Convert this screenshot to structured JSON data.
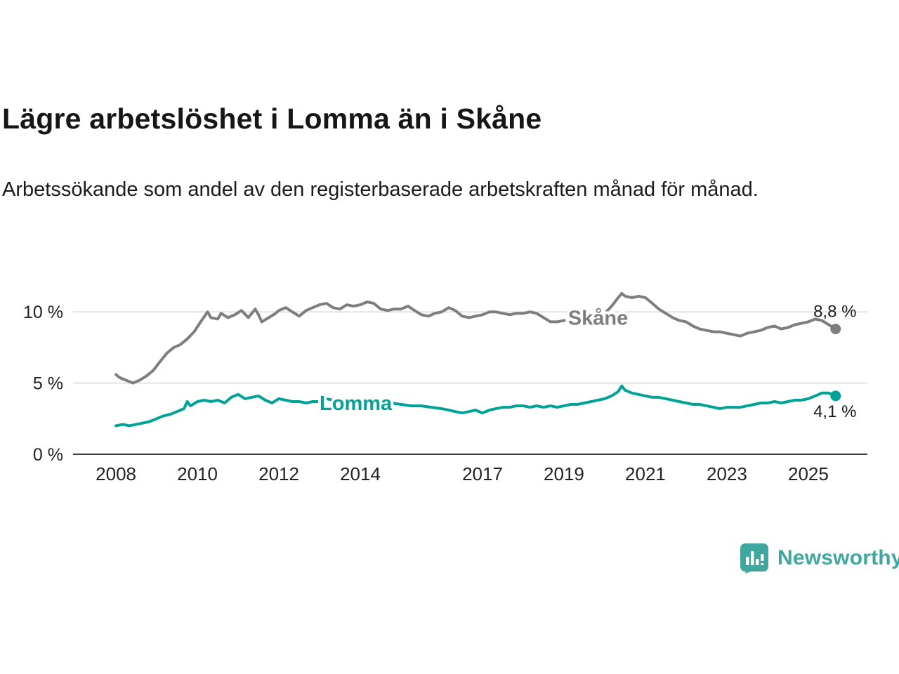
{
  "title": "Lägre arbetslöshet i Lomma än i Skåne",
  "subtitle": "Arbetssökande som andel av den registerbaserade arbetskraften månad för månad.",
  "branding": {
    "name": "Newsworthy",
    "color": "#3fa79f",
    "icon": "bar-chart-speech-bubble-icon"
  },
  "chart_data": {
    "type": "line",
    "title": "Lägre arbetslöshet i Lomma än i Skåne",
    "subtitle": "Arbetssökande som andel av den registerbaserade arbetskraften månad för månad.",
    "xlabel": "",
    "ylabel": "",
    "unit": "%",
    "grid": true,
    "xlim": [
      2007.05,
      2026.45
    ],
    "ylim": [
      0,
      12.33
    ],
    "x_ticks": [
      2008,
      2010,
      2012,
      2014,
      2017,
      2019,
      2021,
      2023,
      2025
    ],
    "y_ticks": [
      {
        "value": 0,
        "label": "0 %"
      },
      {
        "value": 5,
        "label": "5 %"
      },
      {
        "value": 10,
        "label": "10 %"
      }
    ],
    "colors": {
      "grid": "#d9d9d9",
      "axis": "#3d3d3d",
      "tick_text": "#222222",
      "end_label_text": "#1a1a1a"
    },
    "series": [
      {
        "name": "Skåne",
        "color": "#7e7e7e",
        "end_label": "8,8 %",
        "end_value": 8.8,
        "end_label_position": "above",
        "label_x": 2019.1,
        "label_y": 9.1,
        "points": [
          [
            2008.0,
            5.6
          ],
          [
            2008.08,
            5.4
          ],
          [
            2008.25,
            5.2
          ],
          [
            2008.42,
            5.0
          ],
          [
            2008.58,
            5.2
          ],
          [
            2008.75,
            5.5
          ],
          [
            2008.92,
            5.9
          ],
          [
            2009.08,
            6.5
          ],
          [
            2009.25,
            7.1
          ],
          [
            2009.42,
            7.5
          ],
          [
            2009.58,
            7.7
          ],
          [
            2009.75,
            8.1
          ],
          [
            2009.92,
            8.6
          ],
          [
            2010.08,
            9.3
          ],
          [
            2010.25,
            10.0
          ],
          [
            2010.33,
            9.6
          ],
          [
            2010.5,
            9.5
          ],
          [
            2010.58,
            9.9
          ],
          [
            2010.75,
            9.6
          ],
          [
            2010.92,
            9.8
          ],
          [
            2011.08,
            10.1
          ],
          [
            2011.25,
            9.6
          ],
          [
            2011.42,
            10.2
          ],
          [
            2011.5,
            9.8
          ],
          [
            2011.58,
            9.3
          ],
          [
            2011.75,
            9.6
          ],
          [
            2011.92,
            9.9
          ],
          [
            2012.0,
            10.1
          ],
          [
            2012.17,
            10.3
          ],
          [
            2012.33,
            10.0
          ],
          [
            2012.5,
            9.7
          ],
          [
            2012.67,
            10.1
          ],
          [
            2012.83,
            10.3
          ],
          [
            2013.0,
            10.5
          ],
          [
            2013.17,
            10.6
          ],
          [
            2013.33,
            10.3
          ],
          [
            2013.5,
            10.2
          ],
          [
            2013.67,
            10.5
          ],
          [
            2013.83,
            10.4
          ],
          [
            2014.0,
            10.5
          ],
          [
            2014.17,
            10.7
          ],
          [
            2014.33,
            10.6
          ],
          [
            2014.5,
            10.2
          ],
          [
            2014.67,
            10.1
          ],
          [
            2014.83,
            10.2
          ],
          [
            2015.0,
            10.2
          ],
          [
            2015.17,
            10.4
          ],
          [
            2015.33,
            10.1
          ],
          [
            2015.5,
            9.8
          ],
          [
            2015.67,
            9.7
          ],
          [
            2015.83,
            9.9
          ],
          [
            2016.0,
            10.0
          ],
          [
            2016.17,
            10.3
          ],
          [
            2016.33,
            10.1
          ],
          [
            2016.5,
            9.7
          ],
          [
            2016.67,
            9.6
          ],
          [
            2016.83,
            9.7
          ],
          [
            2017.0,
            9.8
          ],
          [
            2017.17,
            10.0
          ],
          [
            2017.33,
            10.0
          ],
          [
            2017.5,
            9.9
          ],
          [
            2017.67,
            9.8
          ],
          [
            2017.83,
            9.9
          ],
          [
            2018.0,
            9.9
          ],
          [
            2018.17,
            10.0
          ],
          [
            2018.33,
            9.9
          ],
          [
            2018.5,
            9.6
          ],
          [
            2018.67,
            9.3
          ],
          [
            2018.83,
            9.3
          ],
          [
            2019.0,
            9.4
          ],
          [
            2019.17,
            9.4
          ],
          [
            2019.33,
            9.4
          ],
          [
            2019.5,
            9.3
          ],
          [
            2019.67,
            9.4
          ],
          [
            2019.83,
            9.6
          ],
          [
            2020.0,
            9.9
          ],
          [
            2020.17,
            10.4
          ],
          [
            2020.33,
            11.0
          ],
          [
            2020.42,
            11.3
          ],
          [
            2020.5,
            11.1
          ],
          [
            2020.67,
            11.0
          ],
          [
            2020.83,
            11.1
          ],
          [
            2021.0,
            11.0
          ],
          [
            2021.17,
            10.6
          ],
          [
            2021.33,
            10.2
          ],
          [
            2021.5,
            9.9
          ],
          [
            2021.67,
            9.6
          ],
          [
            2021.83,
            9.4
          ],
          [
            2022.0,
            9.3
          ],
          [
            2022.17,
            9.0
          ],
          [
            2022.33,
            8.8
          ],
          [
            2022.5,
            8.7
          ],
          [
            2022.67,
            8.6
          ],
          [
            2022.83,
            8.6
          ],
          [
            2023.0,
            8.5
          ],
          [
            2023.17,
            8.4
          ],
          [
            2023.33,
            8.3
          ],
          [
            2023.5,
            8.5
          ],
          [
            2023.67,
            8.6
          ],
          [
            2023.83,
            8.7
          ],
          [
            2024.0,
            8.9
          ],
          [
            2024.17,
            9.0
          ],
          [
            2024.33,
            8.8
          ],
          [
            2024.5,
            8.9
          ],
          [
            2024.67,
            9.1
          ],
          [
            2024.83,
            9.2
          ],
          [
            2025.0,
            9.3
          ],
          [
            2025.17,
            9.5
          ],
          [
            2025.33,
            9.4
          ],
          [
            2025.5,
            9.1
          ],
          [
            2025.67,
            8.8
          ]
        ]
      },
      {
        "name": "Lomma",
        "color": "#00a396",
        "end_label": "4,1 %",
        "end_value": 4.1,
        "end_label_position": "below",
        "label_x": 2013.0,
        "label_y": 3.1,
        "points": [
          [
            2008.0,
            2.0
          ],
          [
            2008.17,
            2.1
          ],
          [
            2008.33,
            2.0
          ],
          [
            2008.5,
            2.1
          ],
          [
            2008.67,
            2.2
          ],
          [
            2008.83,
            2.3
          ],
          [
            2009.0,
            2.5
          ],
          [
            2009.17,
            2.7
          ],
          [
            2009.33,
            2.8
          ],
          [
            2009.5,
            3.0
          ],
          [
            2009.67,
            3.2
          ],
          [
            2009.75,
            3.7
          ],
          [
            2009.83,
            3.4
          ],
          [
            2010.0,
            3.7
          ],
          [
            2010.17,
            3.8
          ],
          [
            2010.33,
            3.7
          ],
          [
            2010.5,
            3.8
          ],
          [
            2010.67,
            3.6
          ],
          [
            2010.83,
            4.0
          ],
          [
            2011.0,
            4.2
          ],
          [
            2011.17,
            3.9
          ],
          [
            2011.33,
            4.0
          ],
          [
            2011.5,
            4.1
          ],
          [
            2011.67,
            3.8
          ],
          [
            2011.83,
            3.6
          ],
          [
            2012.0,
            3.9
          ],
          [
            2012.17,
            3.8
          ],
          [
            2012.33,
            3.7
          ],
          [
            2012.5,
            3.7
          ],
          [
            2012.67,
            3.6
          ],
          [
            2012.83,
            3.7
          ],
          [
            2013.0,
            3.7
          ],
          [
            2013.17,
            3.9
          ],
          [
            2013.33,
            3.8
          ],
          [
            2013.5,
            3.9
          ],
          [
            2013.67,
            3.8
          ],
          [
            2013.83,
            3.8
          ],
          [
            2014.0,
            3.8
          ],
          [
            2014.25,
            3.7
          ],
          [
            2014.5,
            3.6
          ],
          [
            2014.75,
            3.6
          ],
          [
            2015.0,
            3.5
          ],
          [
            2015.25,
            3.4
          ],
          [
            2015.5,
            3.4
          ],
          [
            2015.75,
            3.3
          ],
          [
            2016.0,
            3.2
          ],
          [
            2016.17,
            3.1
          ],
          [
            2016.33,
            3.0
          ],
          [
            2016.5,
            2.9
          ],
          [
            2016.67,
            3.0
          ],
          [
            2016.83,
            3.1
          ],
          [
            2017.0,
            2.9
          ],
          [
            2017.17,
            3.1
          ],
          [
            2017.33,
            3.2
          ],
          [
            2017.5,
            3.3
          ],
          [
            2017.67,
            3.3
          ],
          [
            2017.83,
            3.4
          ],
          [
            2018.0,
            3.4
          ],
          [
            2018.17,
            3.3
          ],
          [
            2018.33,
            3.4
          ],
          [
            2018.5,
            3.3
          ],
          [
            2018.67,
            3.4
          ],
          [
            2018.83,
            3.3
          ],
          [
            2019.0,
            3.4
          ],
          [
            2019.17,
            3.5
          ],
          [
            2019.33,
            3.5
          ],
          [
            2019.5,
            3.6
          ],
          [
            2019.67,
            3.7
          ],
          [
            2019.83,
            3.8
          ],
          [
            2020.0,
            3.9
          ],
          [
            2020.17,
            4.1
          ],
          [
            2020.33,
            4.4
          ],
          [
            2020.42,
            4.8
          ],
          [
            2020.5,
            4.5
          ],
          [
            2020.67,
            4.3
          ],
          [
            2020.83,
            4.2
          ],
          [
            2021.0,
            4.1
          ],
          [
            2021.17,
            4.0
          ],
          [
            2021.33,
            4.0
          ],
          [
            2021.5,
            3.9
          ],
          [
            2021.67,
            3.8
          ],
          [
            2021.83,
            3.7
          ],
          [
            2022.0,
            3.6
          ],
          [
            2022.17,
            3.5
          ],
          [
            2022.33,
            3.5
          ],
          [
            2022.5,
            3.4
          ],
          [
            2022.67,
            3.3
          ],
          [
            2022.83,
            3.2
          ],
          [
            2023.0,
            3.3
          ],
          [
            2023.17,
            3.3
          ],
          [
            2023.33,
            3.3
          ],
          [
            2023.5,
            3.4
          ],
          [
            2023.67,
            3.5
          ],
          [
            2023.83,
            3.6
          ],
          [
            2024.0,
            3.6
          ],
          [
            2024.17,
            3.7
          ],
          [
            2024.33,
            3.6
          ],
          [
            2024.5,
            3.7
          ],
          [
            2024.67,
            3.8
          ],
          [
            2024.83,
            3.8
          ],
          [
            2025.0,
            3.9
          ],
          [
            2025.17,
            4.1
          ],
          [
            2025.33,
            4.3
          ],
          [
            2025.5,
            4.3
          ],
          [
            2025.67,
            4.1
          ]
        ]
      }
    ]
  }
}
